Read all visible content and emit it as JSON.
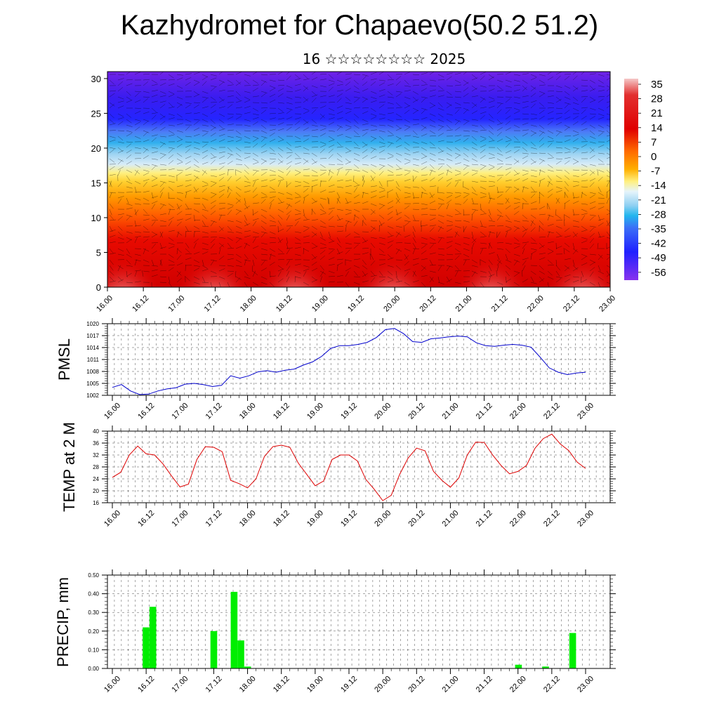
{
  "header": {
    "title": "Kazhydromet for Chapaevo(50.2 51.2)",
    "subtitle": "16 ☆☆☆☆☆☆☆☆ 2025"
  },
  "time_labels": [
    "16.00",
    "16.12",
    "17.00",
    "17.12",
    "18.00",
    "18.12",
    "19.00",
    "19.12",
    "20.00",
    "20.12",
    "21.00",
    "21.12",
    "22.00",
    "22.12",
    "23.00"
  ],
  "chart_data": [
    {
      "type": "heatmap",
      "title": "Kazhydromet for Chapaevo(50.2 51.2)",
      "subtitle": "16 ☆☆☆☆☆☆☆☆ 2025",
      "xlabel": "",
      "ylabel": "",
      "ylim": [
        0,
        31
      ],
      "yticks": [
        "0",
        "5",
        "10",
        "15",
        "20",
        "25",
        "30"
      ],
      "colorbar_labels": [
        "35",
        "28",
        "21",
        "14",
        "7",
        "0",
        "-7",
        "-14",
        "-21",
        "-28",
        "-35",
        "-42",
        "-49",
        "-56"
      ],
      "colorbar_range": [
        -63,
        42
      ],
      "colors": {
        "warm_max": "#f2b5b5",
        "hot": "#d90000",
        "orange": "#ff8c00",
        "yellow": "#ffe566",
        "pale": "#c8e4f5",
        "cyan": "#22b6ee",
        "blue": "#2020ff",
        "violet": "#8833ee"
      },
      "x_labels": [
        "16.00",
        "16.12",
        "17.00",
        "17.12",
        "18.00",
        "18.12",
        "19.00",
        "19.12",
        "20.00",
        "20.12",
        "21.00",
        "21.12",
        "22.00",
        "22.12",
        "23.00"
      ]
    },
    {
      "type": "line",
      "ylabel": "PMSL",
      "ylim": [
        1002,
        1020
      ],
      "yticks": [
        "1002",
        "1005",
        "1008",
        "1011",
        "1014",
        "1017",
        "1020"
      ],
      "x_labels": [
        "16.00",
        "16.12",
        "17.00",
        "17.12",
        "18.00",
        "18.12",
        "19.00",
        "19.12",
        "20.00",
        "20.12",
        "21.00",
        "21.12",
        "22.00",
        "22.12",
        "23.00"
      ],
      "series": [
        {
          "color": "#0000cc",
          "values": [
            1004.0,
            1004.7,
            1003.1,
            1002.2,
            1002.3,
            1003.1,
            1003.6,
            1003.9,
            1004.8,
            1005.0,
            1004.7,
            1004.2,
            1004.5,
            1006.9,
            1006.3,
            1006.9,
            1007.9,
            1008.2,
            1007.8,
            1008.3,
            1008.6,
            1009.6,
            1010.4,
            1011.8,
            1013.8,
            1014.5,
            1014.5,
            1014.8,
            1015.3,
            1016.5,
            1018.5,
            1018.8,
            1017.5,
            1015.5,
            1015.3,
            1016.2,
            1016.4,
            1016.7,
            1016.9,
            1016.7,
            1015.2,
            1014.5,
            1014.3,
            1014.6,
            1014.8,
            1014.6,
            1014.1,
            1011.6,
            1008.9,
            1007.8,
            1007.2,
            1007.6,
            1007.8
          ]
        }
      ]
    },
    {
      "type": "line",
      "ylabel": "TEMP at 2 M",
      "ylim": [
        16,
        40
      ],
      "yticks": [
        "16",
        "20",
        "24",
        "28",
        "32",
        "36",
        "40"
      ],
      "x_labels": [
        "16.00",
        "16.12",
        "17.00",
        "17.12",
        "18.00",
        "18.12",
        "19.00",
        "19.12",
        "20.00",
        "20.12",
        "21.00",
        "21.12",
        "22.00",
        "22.12",
        "23.00"
      ],
      "series": [
        {
          "color": "#dd0000",
          "values": [
            24.5,
            26.2,
            32.0,
            35.0,
            32.4,
            32.0,
            29.0,
            25.0,
            21.3,
            22.2,
            30.5,
            34.8,
            34.6,
            33.1,
            23.5,
            22.4,
            21.0,
            24.0,
            31.5,
            34.8,
            35.3,
            34.6,
            29.3,
            25.5,
            21.7,
            23.3,
            30.5,
            32.0,
            32.0,
            30.0,
            23.8,
            20.5,
            16.7,
            18.5,
            25.5,
            31.0,
            34.3,
            33.4,
            26.5,
            23.5,
            21.2,
            24.3,
            32.0,
            36.3,
            36.2,
            32.0,
            28.5,
            25.7,
            26.5,
            28.5,
            34.2,
            37.5,
            39.0,
            35.7,
            33.5,
            29.6,
            27.5
          ]
        }
      ]
    },
    {
      "type": "bar",
      "ylabel": "PRECIP, mm",
      "ylim": [
        0,
        0.5
      ],
      "yticks": [
        "0.00",
        "0.10",
        "0.20",
        "0.30",
        "0.40",
        "0.50"
      ],
      "x_labels": [
        "16.00",
        "16.12",
        "17.00",
        "17.12",
        "18.00",
        "18.12",
        "19.00",
        "19.12",
        "20.00",
        "20.12",
        "21.00",
        "21.12",
        "22.00",
        "22.12",
        "23.00"
      ],
      "color": "#00ee00",
      "values": [
        0,
        0,
        0,
        0,
        0,
        0.22,
        0.33,
        0,
        0,
        0,
        0,
        0,
        0,
        0,
        0,
        0.2,
        0,
        0,
        0.41,
        0.15,
        0.01,
        0,
        0,
        0,
        0,
        0,
        0,
        0,
        0,
        0,
        0,
        0,
        0,
        0,
        0,
        0,
        0,
        0,
        0,
        0,
        0,
        0,
        0,
        0,
        0,
        0,
        0,
        0,
        0,
        0,
        0,
        0,
        0,
        0,
        0,
        0,
        0,
        0,
        0,
        0,
        0.02,
        0,
        0,
        0,
        0.01,
        0,
        0,
        0,
        0.19,
        0,
        0,
        0,
        0
      ]
    }
  ]
}
